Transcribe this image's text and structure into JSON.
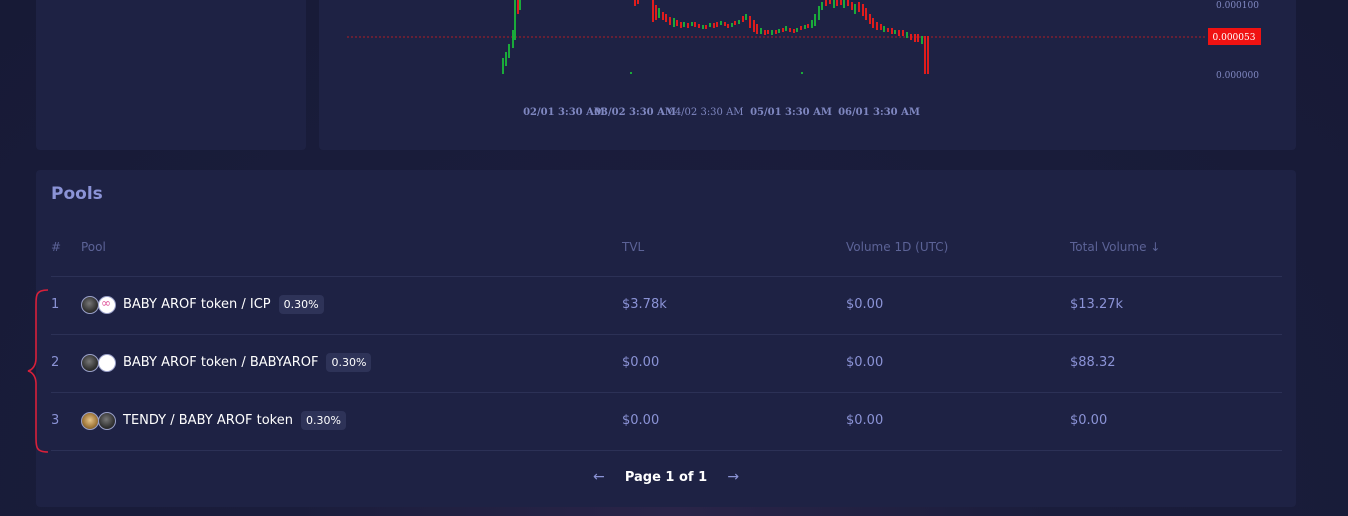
{
  "chart": {
    "x_labels": [
      "02/01 3:30 AM",
      "03/02 3:30 AM",
      "04/02 3:30 AM",
      "05/01 3:30 AM",
      "06/01 3:30 AM"
    ],
    "y_labels": [
      "0.000100",
      "0.000000"
    ],
    "current_price": "0.000053",
    "colors": {
      "up": "#1aaa3a",
      "down": "#e01c1c",
      "price_line": "#e01c1c"
    }
  },
  "pools": {
    "title": "Pools",
    "columns": {
      "index": "#",
      "pool": "Pool",
      "tvl": "TVL",
      "volume": "Volume 1D (UTC)",
      "total_volume": "Total Volume"
    },
    "sort_icon": "arrow-down-icon",
    "rows": [
      {
        "index": "1",
        "name": "BABY AROF token / ICP",
        "fee": "0.30%",
        "tvl": "$3.78k",
        "volume": "$0.00",
        "total_volume": "$13.27k",
        "token_icons": [
          "baby-arof-icon",
          "icp-icon"
        ]
      },
      {
        "index": "2",
        "name": "BABY AROF token / BABYAROF",
        "fee": "0.30%",
        "tvl": "$0.00",
        "volume": "$0.00",
        "total_volume": "$88.32",
        "token_icons": [
          "baby-arof-icon",
          "babyarof-icon"
        ]
      },
      {
        "index": "3",
        "name": "TENDY / BABY AROF token",
        "fee": "0.30%",
        "tvl": "$0.00",
        "volume": "$0.00",
        "total_volume": "$0.00",
        "token_icons": [
          "tendy-icon",
          "baby-arof-icon"
        ]
      }
    ],
    "pagination": {
      "label": "Page 1 of 1",
      "prev_icon": "arrow-left-icon",
      "next_icon": "arrow-right-icon"
    }
  }
}
